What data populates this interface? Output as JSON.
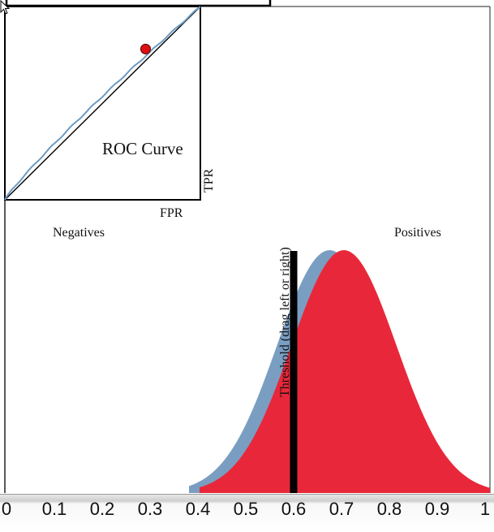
{
  "labels": {
    "roc_title": "ROC Curve",
    "fpr": "FPR",
    "tpr": "TPR",
    "negatives": "Negatives",
    "positives": "Positives",
    "threshold": "Threshold (drag left or right)"
  },
  "colors": {
    "negatives_fill": "#7a9ec2",
    "positives_fill": "#e8283a",
    "roc_curve": "#6d9bc3",
    "roc_point": "#dd1111",
    "threshold_line": "#000000"
  },
  "threshold": 0.6,
  "axis": {
    "ticks": [
      "0",
      "0.1",
      "0.2",
      "0.3",
      "0.4",
      "0.5",
      "0.6",
      "0.7",
      "0.8",
      "0.9",
      "1"
    ]
  },
  "distributions": {
    "negatives": {
      "mean": 0.675,
      "sd": 0.11
    },
    "positives": {
      "mean": 0.705,
      "sd": 0.11
    }
  },
  "roc_point": {
    "fpr": 0.72,
    "tpr": 0.78
  }
}
